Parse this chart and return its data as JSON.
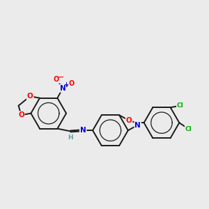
{
  "bg_color": "#ebebeb",
  "bond_color": "#1a1a1a",
  "atom_colors": {
    "O": "#ff0000",
    "N": "#0000dd",
    "Cl": "#00aa00",
    "H": "#6699aa"
  },
  "bond_width": 1.4,
  "aromatic_lw": 0.9
}
